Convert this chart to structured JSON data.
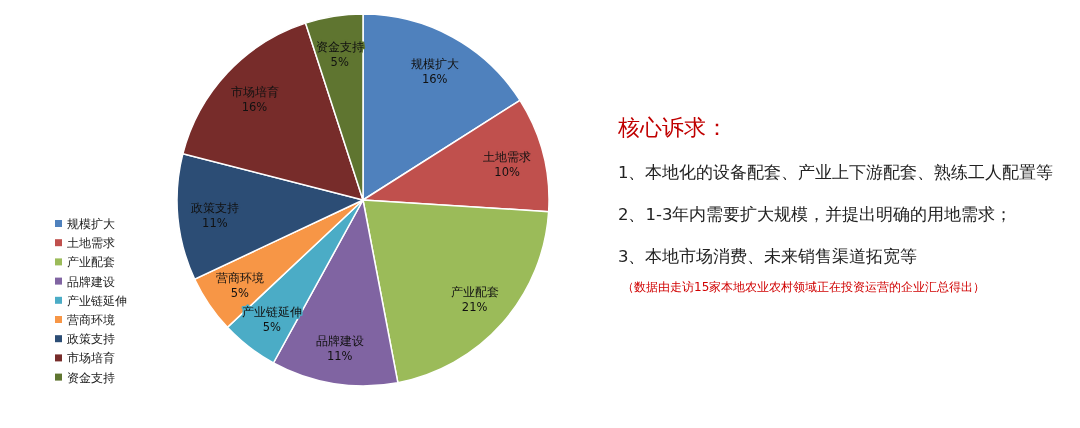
{
  "chart_data": {
    "type": "pie",
    "title": "核心诉求：",
    "categories": [
      "规模扩大",
      "土地需求",
      "产业配套",
      "品牌建设",
      "产业链延伸",
      "营商环境",
      "政策支持",
      "市场培育",
      "资金支持"
    ],
    "values": [
      16,
      10,
      21,
      11,
      5,
      5,
      11,
      16,
      5
    ],
    "colors": [
      "#4f81bd",
      "#c0504d",
      "#9bbb59",
      "#8064a2",
      "#4bacc6",
      "#f79646",
      "#2c4d75",
      "#772c2a",
      "#5f7530"
    ],
    "value_labels": [
      "16%",
      "10%",
      "21%",
      "11%",
      "5%",
      "5%",
      "11%",
      "16%",
      "5%"
    ],
    "legend": "left",
    "annotations": [
      "1、本地化的设备配套、产业上下游配套、熟练工人配置等",
      "2、1-3年内需要扩大规模，并提出明确的用地需求；",
      "3、本地市场消费、未来销售渠道拓宽等",
      "（数据由走访15家本地农业农村领域正在投资运营的企业汇总得出）"
    ]
  }
}
